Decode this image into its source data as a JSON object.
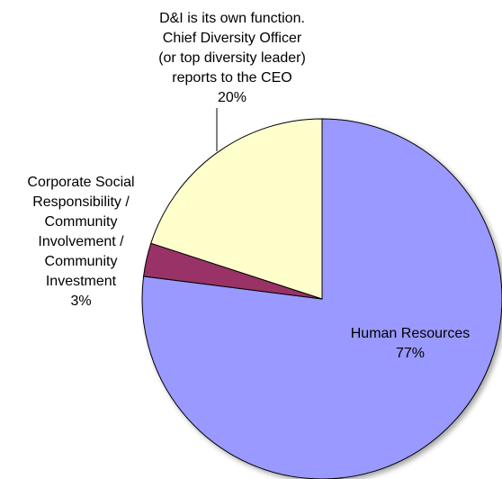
{
  "chart_data": {
    "type": "pie",
    "start_angle_deg": 0,
    "direction": "clockwise",
    "slices": [
      {
        "name": "Human Resources",
        "value": 77,
        "label_lines": [
          "Human Resources",
          "77%"
        ],
        "color": "#9999ff"
      },
      {
        "name": "Corporate Social Responsibility / Community Involvement / Community Investment",
        "value": 3,
        "label_lines": [
          "Corporate Social",
          "Responsibility /",
          "Community",
          "Involvement /",
          "Community",
          "Investment",
          "3%"
        ],
        "color": "#993366"
      },
      {
        "name": "D&I is its own function. Chief Diversity Officer (or top diversity leader) reports to the CEO",
        "value": 20,
        "label_lines": [
          "D&I is its own function.",
          "Chief Diversity Officer",
          "(or top diversity leader)",
          "reports to the CEO",
          "20%"
        ],
        "color": "#ffffcc"
      }
    ]
  }
}
